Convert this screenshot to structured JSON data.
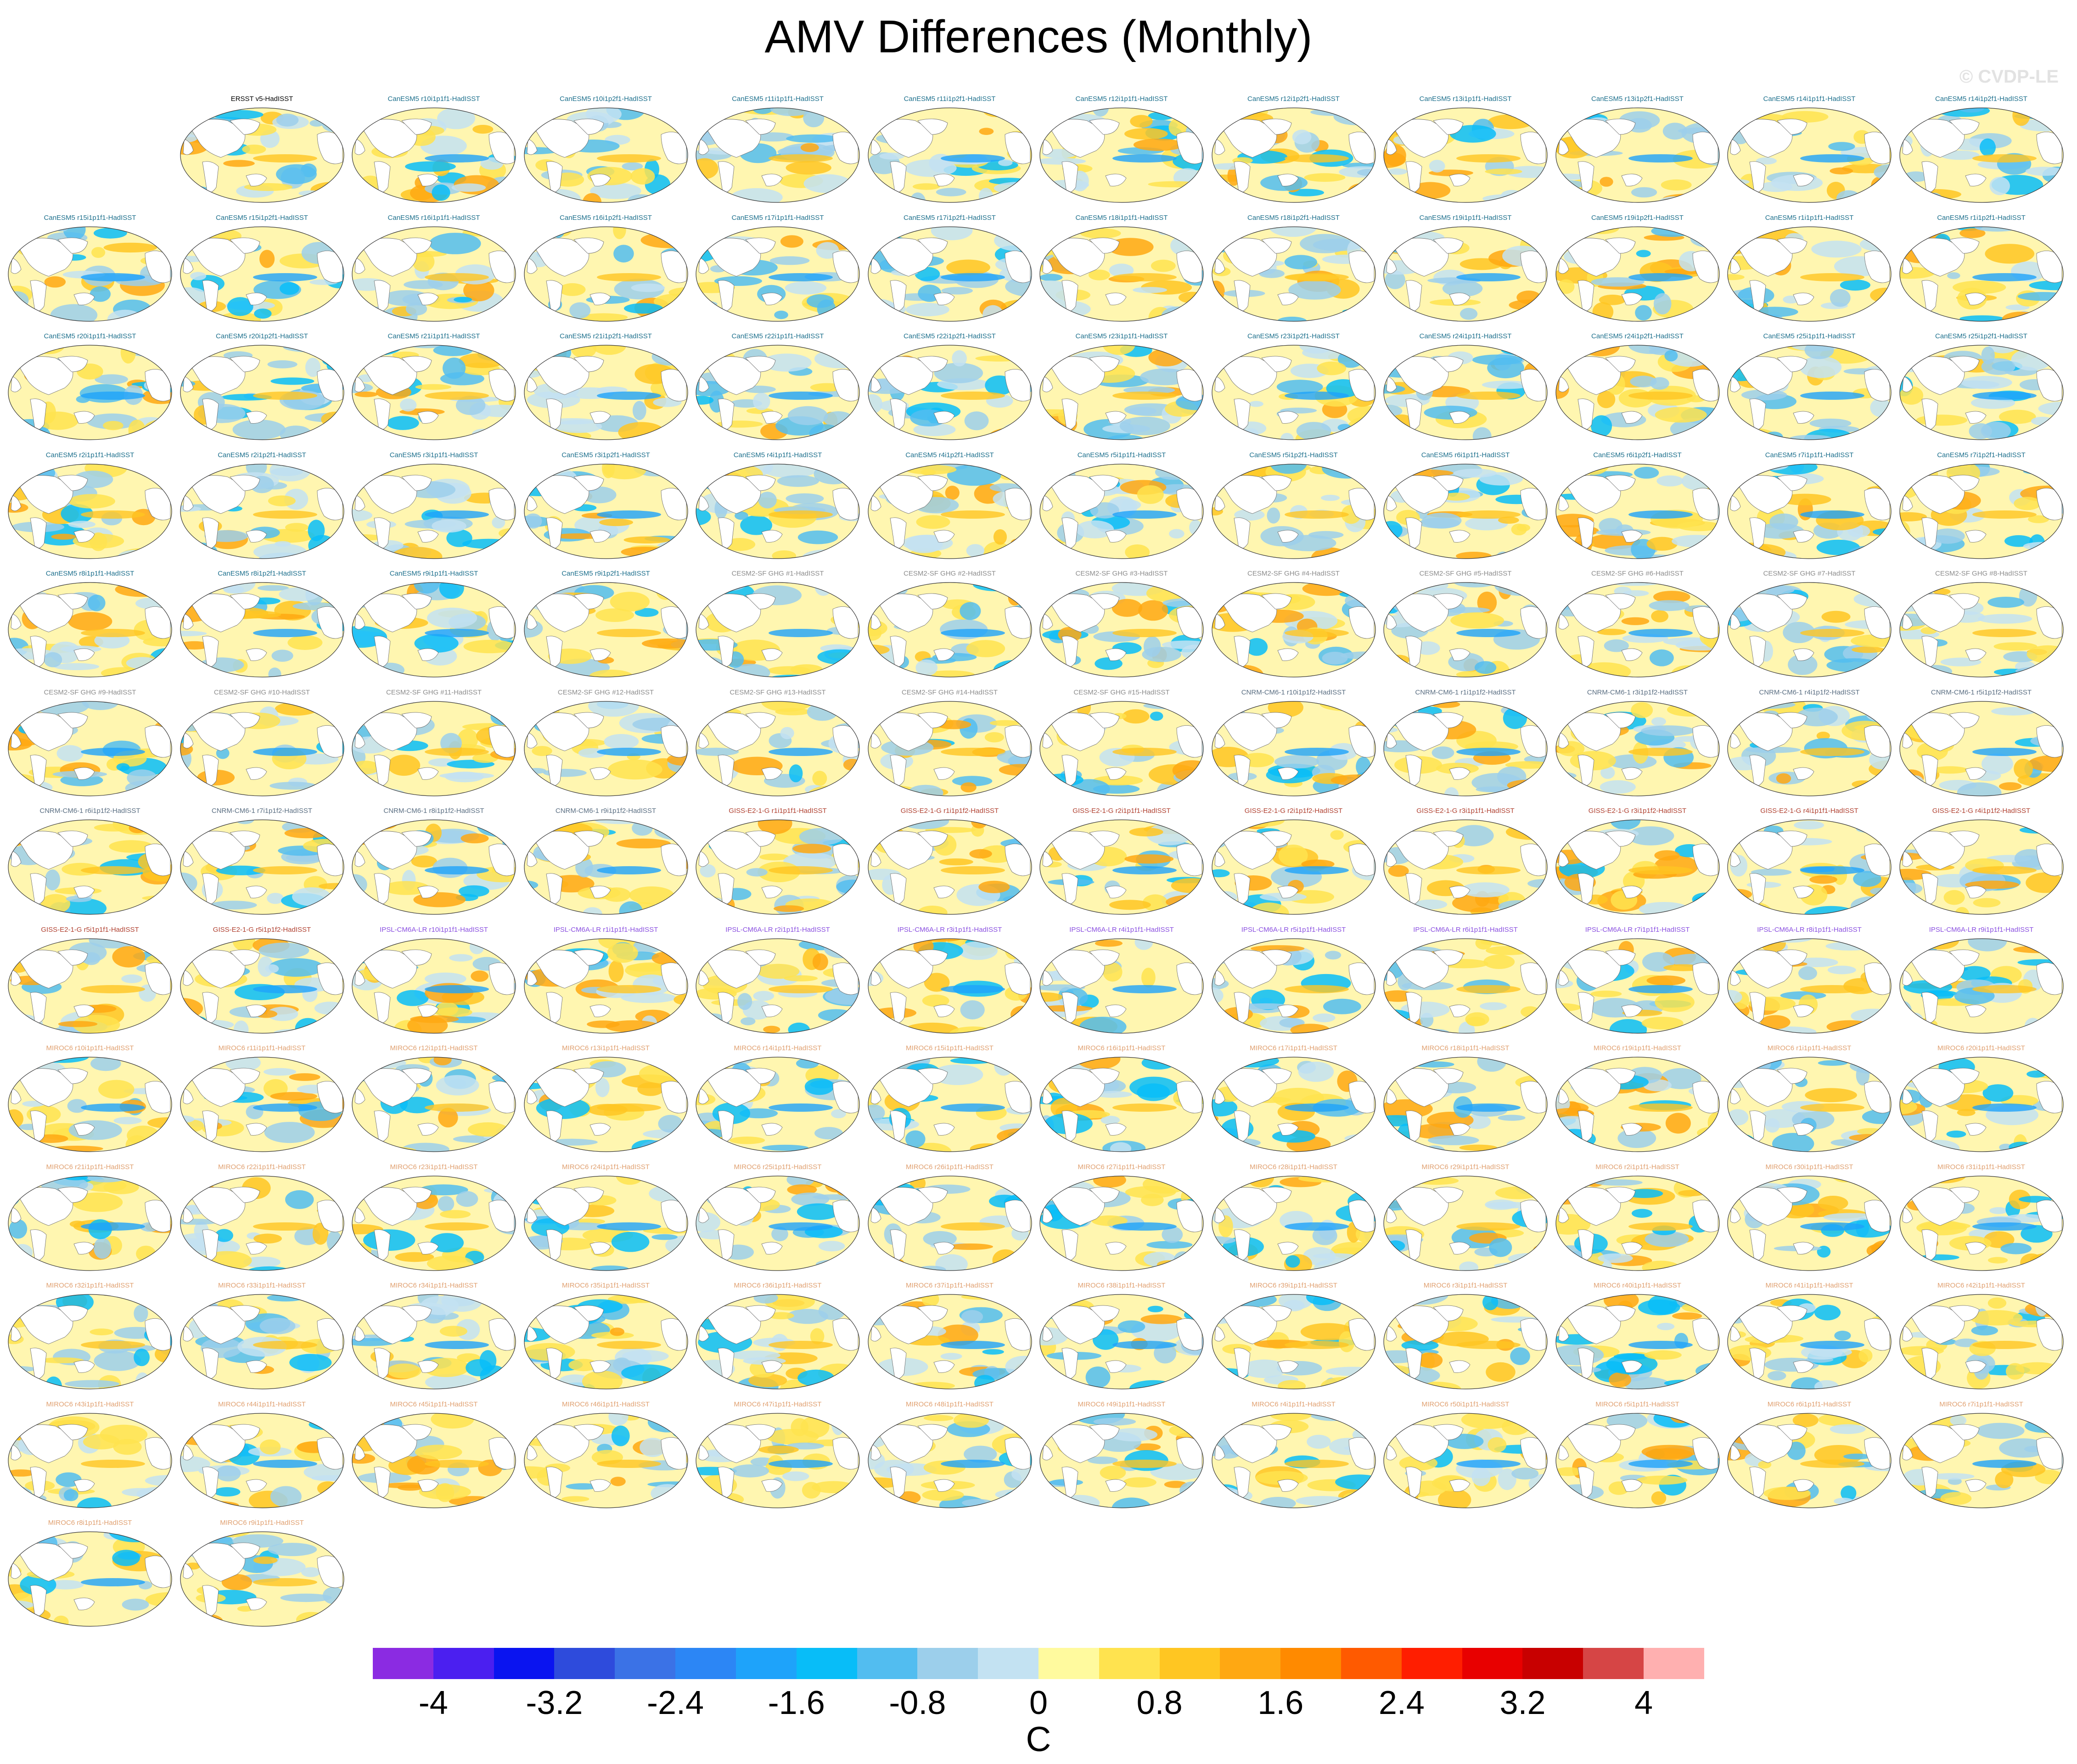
{
  "title": "AMV Differences (Monthly)",
  "watermark": "© CVDP-LE",
  "group_colors": {
    "obs": "#000000",
    "CanESM5": "#1c6f8c",
    "CESM2": "#8c8c8c",
    "CNRM": "#5a6e82",
    "GISS": "#b04030",
    "IPSL": "#8a4fe0",
    "MIROC6": "#e0a070"
  },
  "panels": [
    {
      "label": "ERSST v5-HadISST",
      "group": "obs"
    },
    {
      "label": "CanESM5 r10i1p1f1-HadISST",
      "group": "CanESM5"
    },
    {
      "label": "CanESM5 r10i1p2f1-HadISST",
      "group": "CanESM5"
    },
    {
      "label": "CanESM5 r11i1p1f1-HadISST",
      "group": "CanESM5"
    },
    {
      "label": "CanESM5 r11i1p2f1-HadISST",
      "group": "CanESM5"
    },
    {
      "label": "CanESM5 r12i1p1f1-HadISST",
      "group": "CanESM5"
    },
    {
      "label": "CanESM5 r12i1p2f1-HadISST",
      "group": "CanESM5"
    },
    {
      "label": "CanESM5 r13i1p1f1-HadISST",
      "group": "CanESM5"
    },
    {
      "label": "CanESM5 r13i1p2f1-HadISST",
      "group": "CanESM5"
    },
    {
      "label": "CanESM5 r14i1p1f1-HadISST",
      "group": "CanESM5"
    },
    {
      "label": "CanESM5 r14i1p2f1-HadISST",
      "group": "CanESM5"
    },
    {
      "label": "CanESM5 r15i1p1f1-HadISST",
      "group": "CanESM5"
    },
    {
      "label": "CanESM5 r15i1p2f1-HadISST",
      "group": "CanESM5"
    },
    {
      "label": "CanESM5 r16i1p1f1-HadISST",
      "group": "CanESM5"
    },
    {
      "label": "CanESM5 r16i1p2f1-HadISST",
      "group": "CanESM5"
    },
    {
      "label": "CanESM5 r17i1p1f1-HadISST",
      "group": "CanESM5"
    },
    {
      "label": "CanESM5 r17i1p2f1-HadISST",
      "group": "CanESM5"
    },
    {
      "label": "CanESM5 r18i1p1f1-HadISST",
      "group": "CanESM5"
    },
    {
      "label": "CanESM5 r18i1p2f1-HadISST",
      "group": "CanESM5"
    },
    {
      "label": "CanESM5 r19i1p1f1-HadISST",
      "group": "CanESM5"
    },
    {
      "label": "CanESM5 r19i1p2f1-HadISST",
      "group": "CanESM5"
    },
    {
      "label": "CanESM5 r1i1p1f1-HadISST",
      "group": "CanESM5"
    },
    {
      "label": "CanESM5 r1i1p2f1-HadISST",
      "group": "CanESM5"
    },
    {
      "label": "CanESM5 r20i1p1f1-HadISST",
      "group": "CanESM5"
    },
    {
      "label": "CanESM5 r20i1p2f1-HadISST",
      "group": "CanESM5"
    },
    {
      "label": "CanESM5 r21i1p1f1-HadISST",
      "group": "CanESM5"
    },
    {
      "label": "CanESM5 r21i1p2f1-HadISST",
      "group": "CanESM5"
    },
    {
      "label": "CanESM5 r22i1p1f1-HadISST",
      "group": "CanESM5"
    },
    {
      "label": "CanESM5 r22i1p2f1-HadISST",
      "group": "CanESM5"
    },
    {
      "label": "CanESM5 r23i1p1f1-HadISST",
      "group": "CanESM5"
    },
    {
      "label": "CanESM5 r23i1p2f1-HadISST",
      "group": "CanESM5"
    },
    {
      "label": "CanESM5 r24i1p1f1-HadISST",
      "group": "CanESM5"
    },
    {
      "label": "CanESM5 r24i1p2f1-HadISST",
      "group": "CanESM5"
    },
    {
      "label": "CanESM5 r25i1p1f1-HadISST",
      "group": "CanESM5"
    },
    {
      "label": "CanESM5 r25i1p2f1-HadISST",
      "group": "CanESM5"
    },
    {
      "label": "CanESM5 r2i1p1f1-HadISST",
      "group": "CanESM5"
    },
    {
      "label": "CanESM5 r2i1p2f1-HadISST",
      "group": "CanESM5"
    },
    {
      "label": "CanESM5 r3i1p1f1-HadISST",
      "group": "CanESM5"
    },
    {
      "label": "CanESM5 r3i1p2f1-HadISST",
      "group": "CanESM5"
    },
    {
      "label": "CanESM5 r4i1p1f1-HadISST",
      "group": "CanESM5"
    },
    {
      "label": "CanESM5 r4i1p2f1-HadISST",
      "group": "CanESM5"
    },
    {
      "label": "CanESM5 r5i1p1f1-HadISST",
      "group": "CanESM5"
    },
    {
      "label": "CanESM5 r5i1p2f1-HadISST",
      "group": "CanESM5"
    },
    {
      "label": "CanESM5 r6i1p1f1-HadISST",
      "group": "CanESM5"
    },
    {
      "label": "CanESM5 r6i1p2f1-HadISST",
      "group": "CanESM5"
    },
    {
      "label": "CanESM5 r7i1p1f1-HadISST",
      "group": "CanESM5"
    },
    {
      "label": "CanESM5 r7i1p2f1-HadISST",
      "group": "CanESM5"
    },
    {
      "label": "CanESM5 r8i1p1f1-HadISST",
      "group": "CanESM5"
    },
    {
      "label": "CanESM5 r8i1p2f1-HadISST",
      "group": "CanESM5"
    },
    {
      "label": "CanESM5 r9i1p1f1-HadISST",
      "group": "CanESM5"
    },
    {
      "label": "CanESM5 r9i1p2f1-HadISST",
      "group": "CanESM5"
    },
    {
      "label": "CESM2-SF GHG #1-HadISST",
      "group": "CESM2"
    },
    {
      "label": "CESM2-SF GHG #2-HadISST",
      "group": "CESM2"
    },
    {
      "label": "CESM2-SF GHG #3-HadISST",
      "group": "CESM2"
    },
    {
      "label": "CESM2-SF GHG #4-HadISST",
      "group": "CESM2"
    },
    {
      "label": "CESM2-SF GHG #5-HadISST",
      "group": "CESM2"
    },
    {
      "label": "CESM2-SF GHG #6-HadISST",
      "group": "CESM2"
    },
    {
      "label": "CESM2-SF GHG #7-HadISST",
      "group": "CESM2"
    },
    {
      "label": "CESM2-SF GHG #8-HadISST",
      "group": "CESM2"
    },
    {
      "label": "CESM2-SF GHG #9-HadISST",
      "group": "CESM2"
    },
    {
      "label": "CESM2-SF GHG #10-HadISST",
      "group": "CESM2"
    },
    {
      "label": "CESM2-SF GHG #11-HadISST",
      "group": "CESM2"
    },
    {
      "label": "CESM2-SF GHG #12-HadISST",
      "group": "CESM2"
    },
    {
      "label": "CESM2-SF GHG #13-HadISST",
      "group": "CESM2"
    },
    {
      "label": "CESM2-SF GHG #14-HadISST",
      "group": "CESM2"
    },
    {
      "label": "CESM2-SF GHG #15-HadISST",
      "group": "CESM2"
    },
    {
      "label": "CNRM-CM6-1 r10i1p1f2-HadISST",
      "group": "CNRM"
    },
    {
      "label": "CNRM-CM6-1 r1i1p1f2-HadISST",
      "group": "CNRM"
    },
    {
      "label": "CNRM-CM6-1 r3i1p1f2-HadISST",
      "group": "CNRM"
    },
    {
      "label": "CNRM-CM6-1 r4i1p1f2-HadISST",
      "group": "CNRM"
    },
    {
      "label": "CNRM-CM6-1 r5i1p1f2-HadISST",
      "group": "CNRM"
    },
    {
      "label": "CNRM-CM6-1 r6i1p1f2-HadISST",
      "group": "CNRM"
    },
    {
      "label": "CNRM-CM6-1 r7i1p1f2-HadISST",
      "group": "CNRM"
    },
    {
      "label": "CNRM-CM6-1 r8i1p1f2-HadISST",
      "group": "CNRM"
    },
    {
      "label": "CNRM-CM6-1 r9i1p1f2-HadISST",
      "group": "CNRM"
    },
    {
      "label": "GISS-E2-1-G r1i1p1f1-HadISST",
      "group": "GISS"
    },
    {
      "label": "GISS-E2-1-G r1i1p1f2-HadISST",
      "group": "GISS"
    },
    {
      "label": "GISS-E2-1-G r2i1p1f1-HadISST",
      "group": "GISS"
    },
    {
      "label": "GISS-E2-1-G r2i1p1f2-HadISST",
      "group": "GISS"
    },
    {
      "label": "GISS-E2-1-G r3i1p1f1-HadISST",
      "group": "GISS"
    },
    {
      "label": "GISS-E2-1-G r3i1p1f2-HadISST",
      "group": "GISS"
    },
    {
      "label": "GISS-E2-1-G r4i1p1f1-HadISST",
      "group": "GISS"
    },
    {
      "label": "GISS-E2-1-G r4i1p1f2-HadISST",
      "group": "GISS"
    },
    {
      "label": "GISS-E2-1-G r5i1p1f1-HadISST",
      "group": "GISS"
    },
    {
      "label": "GISS-E2-1-G r5i1p1f2-HadISST",
      "group": "GISS"
    },
    {
      "label": "IPSL-CM6A-LR r10i1p1f1-HadISST",
      "group": "IPSL"
    },
    {
      "label": "IPSL-CM6A-LR r1i1p1f1-HadISST",
      "group": "IPSL"
    },
    {
      "label": "IPSL-CM6A-LR r2i1p1f1-HadISST",
      "group": "IPSL"
    },
    {
      "label": "IPSL-CM6A-LR r3i1p1f1-HadISST",
      "group": "IPSL"
    },
    {
      "label": "IPSL-CM6A-LR r4i1p1f1-HadISST",
      "group": "IPSL"
    },
    {
      "label": "IPSL-CM6A-LR r5i1p1f1-HadISST",
      "group": "IPSL"
    },
    {
      "label": "IPSL-CM6A-LR r6i1p1f1-HadISST",
      "group": "IPSL"
    },
    {
      "label": "IPSL-CM6A-LR r7i1p1f1-HadISST",
      "group": "IPSL"
    },
    {
      "label": "IPSL-CM6A-LR r8i1p1f1-HadISST",
      "group": "IPSL"
    },
    {
      "label": "IPSL-CM6A-LR r9i1p1f1-HadISST",
      "group": "IPSL"
    },
    {
      "label": "MIROC6 r10i1p1f1-HadISST",
      "group": "MIROC6"
    },
    {
      "label": "MIROC6 r11i1p1f1-HadISST",
      "group": "MIROC6"
    },
    {
      "label": "MIROC6 r12i1p1f1-HadISST",
      "group": "MIROC6"
    },
    {
      "label": "MIROC6 r13i1p1f1-HadISST",
      "group": "MIROC6"
    },
    {
      "label": "MIROC6 r14i1p1f1-HadISST",
      "group": "MIROC6"
    },
    {
      "label": "MIROC6 r15i1p1f1-HadISST",
      "group": "MIROC6"
    },
    {
      "label": "MIROC6 r16i1p1f1-HadISST",
      "group": "MIROC6"
    },
    {
      "label": "MIROC6 r17i1p1f1-HadISST",
      "group": "MIROC6"
    },
    {
      "label": "MIROC6 r18i1p1f1-HadISST",
      "group": "MIROC6"
    },
    {
      "label": "MIROC6 r19i1p1f1-HadISST",
      "group": "MIROC6"
    },
    {
      "label": "MIROC6 r1i1p1f1-HadISST",
      "group": "MIROC6"
    },
    {
      "label": "MIROC6 r20i1p1f1-HadISST",
      "group": "MIROC6"
    },
    {
      "label": "MIROC6 r21i1p1f1-HadISST",
      "group": "MIROC6"
    },
    {
      "label": "MIROC6 r22i1p1f1-HadISST",
      "group": "MIROC6"
    },
    {
      "label": "MIROC6 r23i1p1f1-HadISST",
      "group": "MIROC6"
    },
    {
      "label": "MIROC6 r24i1p1f1-HadISST",
      "group": "MIROC6"
    },
    {
      "label": "MIROC6 r25i1p1f1-HadISST",
      "group": "MIROC6"
    },
    {
      "label": "MIROC6 r26i1p1f1-HadISST",
      "group": "MIROC6"
    },
    {
      "label": "MIROC6 r27i1p1f1-HadISST",
      "group": "MIROC6"
    },
    {
      "label": "MIROC6 r28i1p1f1-HadISST",
      "group": "MIROC6"
    },
    {
      "label": "MIROC6 r29i1p1f1-HadISST",
      "group": "MIROC6"
    },
    {
      "label": "MIROC6 r2i1p1f1-HadISST",
      "group": "MIROC6"
    },
    {
      "label": "MIROC6 r30i1p1f1-HadISST",
      "group": "MIROC6"
    },
    {
      "label": "MIROC6 r31i1p1f1-HadISST",
      "group": "MIROC6"
    },
    {
      "label": "MIROC6 r32i1p1f1-HadISST",
      "group": "MIROC6"
    },
    {
      "label": "MIROC6 r33i1p1f1-HadISST",
      "group": "MIROC6"
    },
    {
      "label": "MIROC6 r34i1p1f1-HadISST",
      "group": "MIROC6"
    },
    {
      "label": "MIROC6 r35i1p1f1-HadISST",
      "group": "MIROC6"
    },
    {
      "label": "MIROC6 r36i1p1f1-HadISST",
      "group": "MIROC6"
    },
    {
      "label": "MIROC6 r37i1p1f1-HadISST",
      "group": "MIROC6"
    },
    {
      "label": "MIROC6 r38i1p1f1-HadISST",
      "group": "MIROC6"
    },
    {
      "label": "MIROC6 r39i1p1f1-HadISST",
      "group": "MIROC6"
    },
    {
      "label": "MIROC6 r3i1p1f1-HadISST",
      "group": "MIROC6"
    },
    {
      "label": "MIROC6 r40i1p1f1-HadISST",
      "group": "MIROC6"
    },
    {
      "label": "MIROC6 r41i1p1f1-HadISST",
      "group": "MIROC6"
    },
    {
      "label": "MIROC6 r42i1p1f1-HadISST",
      "group": "MIROC6"
    },
    {
      "label": "MIROC6 r43i1p1f1-HadISST",
      "group": "MIROC6"
    },
    {
      "label": "MIROC6 r44i1p1f1-HadISST",
      "group": "MIROC6"
    },
    {
      "label": "MIROC6 r45i1p1f1-HadISST",
      "group": "MIROC6"
    },
    {
      "label": "MIROC6 r46i1p1f1-HadISST",
      "group": "MIROC6"
    },
    {
      "label": "MIROC6 r47i1p1f1-HadISST",
      "group": "MIROC6"
    },
    {
      "label": "MIROC6 r48i1p1f1-HadISST",
      "group": "MIROC6"
    },
    {
      "label": "MIROC6 r49i1p1f1-HadISST",
      "group": "MIROC6"
    },
    {
      "label": "MIROC6 r4i1p1f1-HadISST",
      "group": "MIROC6"
    },
    {
      "label": "MIROC6 r50i1p1f1-HadISST",
      "group": "MIROC6"
    },
    {
      "label": "MIROC6 r5i1p1f1-HadISST",
      "group": "MIROC6"
    },
    {
      "label": "MIROC6 r6i1p1f1-HadISST",
      "group": "MIROC6"
    },
    {
      "label": "MIROC6 r7i1p1f1-HadISST",
      "group": "MIROC6"
    },
    {
      "label": "MIROC6 r8i1p1f1-HadISST",
      "group": "MIROC6"
    },
    {
      "label": "MIROC6 r9i1p1f1-HadISST",
      "group": "MIROC6"
    }
  ],
  "colorbar": {
    "colors": [
      "#8b2be2",
      "#4b1ff0",
      "#0a14f0",
      "#2e4bdc",
      "#3b72e6",
      "#2c86f5",
      "#1ea3fa",
      "#08bdf8",
      "#52bdf0",
      "#9ccfeb",
      "#c3e2f2",
      "#fffa9e",
      "#ffe34f",
      "#ffc622",
      "#ffa812",
      "#ff8a00",
      "#ff5a00",
      "#ff1e00",
      "#e80000",
      "#c80000",
      "#d64545",
      "#ffb0b0"
    ],
    "tick_labels": [
      "-4",
      "-3.2",
      "-2.4",
      "-1.6",
      "-0.8",
      "0",
      "0.8",
      "1.6",
      "2.4",
      "3.2",
      "4"
    ],
    "units": "C"
  }
}
